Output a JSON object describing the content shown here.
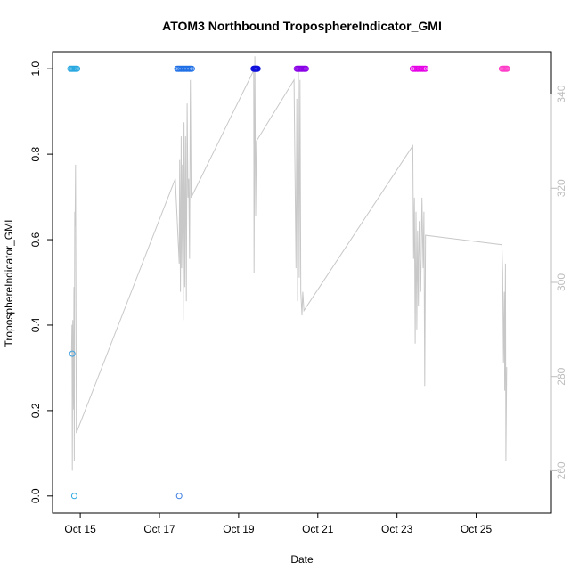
{
  "chart_data": {
    "type": "scatter",
    "title": "ATOM3 Northbound TroposphereIndicator_GMI",
    "xlabel": "Date",
    "ylabel": "TroposphereIndicator_GMI",
    "x_ticks": [
      "Oct 15",
      "Oct 17",
      "Oct 19",
      "Oct 21",
      "Oct 23",
      "Oct 25"
    ],
    "x_tick_days": [
      15,
      17,
      19,
      21,
      23,
      25
    ],
    "xlim_days": [
      14.3,
      26.9
    ],
    "ylim": [
      -0.04,
      1.04
    ],
    "y_ticks": [
      "0.0",
      "0.2",
      "0.4",
      "0.6",
      "0.8",
      "1.0"
    ],
    "y_tick_values": [
      0.0,
      0.2,
      0.4,
      0.6,
      0.8,
      1.0
    ],
    "y2_ylim": [
      251,
      349
    ],
    "y2_ticks": [
      "260",
      "280",
      "300",
      "320",
      "340"
    ],
    "y2_tick_values": [
      260,
      280,
      300,
      320,
      340
    ],
    "point_groups": [
      {
        "color": "#29a8e0",
        "day_range": [
          14.75,
          14.92
        ],
        "count": 7,
        "y": 1.0
      },
      {
        "color": "#1f6fe6",
        "day_range": [
          17.45,
          17.82
        ],
        "count": 12,
        "y": 1.0
      },
      {
        "color": "#1010dd",
        "day_range": [
          19.38,
          19.48
        ],
        "count": 7,
        "y": 1.0
      },
      {
        "color": "#8a00e6",
        "day_range": [
          20.47,
          20.7
        ],
        "count": 10,
        "y": 1.0
      },
      {
        "color": "#e600e6",
        "day_range": [
          23.4,
          23.72
        ],
        "count": 10,
        "y": 1.0
      },
      {
        "color": "#ff3cc8",
        "day_range": [
          25.65,
          25.78
        ],
        "count": 6,
        "y": 1.0
      }
    ],
    "extra_points": [
      {
        "day": 14.8,
        "y": 0.333,
        "color": "#3aa0e0"
      },
      {
        "day": 14.85,
        "y": 0.0,
        "color": "#29a8e0"
      },
      {
        "day": 17.5,
        "y": 0.0,
        "color": "#3a7be0"
      }
    ],
    "right_series": {
      "color": "#c8c8c8",
      "points": [
        [
          14.78,
          285
        ],
        [
          14.79,
          291
        ],
        [
          14.8,
          260
        ],
        [
          14.81,
          292
        ],
        [
          14.82,
          282
        ],
        [
          14.83,
          273
        ],
        [
          14.84,
          299
        ],
        [
          14.85,
          262
        ],
        [
          14.86,
          315
        ],
        [
          14.87,
          312
        ],
        [
          14.88,
          325
        ],
        [
          14.9,
          268
        ],
        [
          17.4,
          322
        ],
        [
          17.5,
          304
        ],
        [
          17.51,
          326
        ],
        [
          17.53,
          298
        ],
        [
          17.55,
          331
        ],
        [
          17.56,
          303
        ],
        [
          17.58,
          325
        ],
        [
          17.6,
          292
        ],
        [
          17.62,
          334
        ],
        [
          17.64,
          299
        ],
        [
          17.66,
          331
        ],
        [
          17.68,
          296
        ],
        [
          17.7,
          338
        ],
        [
          17.72,
          318
        ],
        [
          17.74,
          322
        ],
        [
          17.76,
          305
        ],
        [
          17.78,
          343
        ],
        [
          17.8,
          318
        ],
        [
          19.38,
          345
        ],
        [
          19.39,
          302
        ],
        [
          19.41,
          348
        ],
        [
          19.43,
          314
        ],
        [
          19.45,
          330
        ],
        [
          20.4,
          343
        ],
        [
          20.45,
          303
        ],
        [
          20.47,
          339
        ],
        [
          20.49,
          296
        ],
        [
          20.51,
          345
        ],
        [
          20.53,
          301
        ],
        [
          20.55,
          343
        ],
        [
          20.57,
          298
        ],
        [
          20.6,
          293
        ],
        [
          20.62,
          298
        ],
        [
          20.65,
          294
        ],
        [
          23.4,
          329
        ],
        [
          23.42,
          305
        ],
        [
          23.44,
          318
        ],
        [
          23.46,
          287
        ],
        [
          23.48,
          315
        ],
        [
          23.5,
          290
        ],
        [
          23.52,
          311
        ],
        [
          23.54,
          295
        ],
        [
          23.56,
          313
        ],
        [
          23.6,
          298
        ],
        [
          23.63,
          318
        ],
        [
          23.66,
          303
        ],
        [
          23.68,
          315
        ],
        [
          23.7,
          278
        ],
        [
          23.72,
          310
        ],
        [
          25.65,
          308
        ],
        [
          25.67,
          302
        ],
        [
          25.69,
          283
        ],
        [
          25.71,
          298
        ],
        [
          25.72,
          277
        ],
        [
          25.74,
          304
        ],
        [
          25.75,
          262
        ],
        [
          25.77,
          282
        ]
      ]
    },
    "grid": false,
    "legend": "none"
  }
}
